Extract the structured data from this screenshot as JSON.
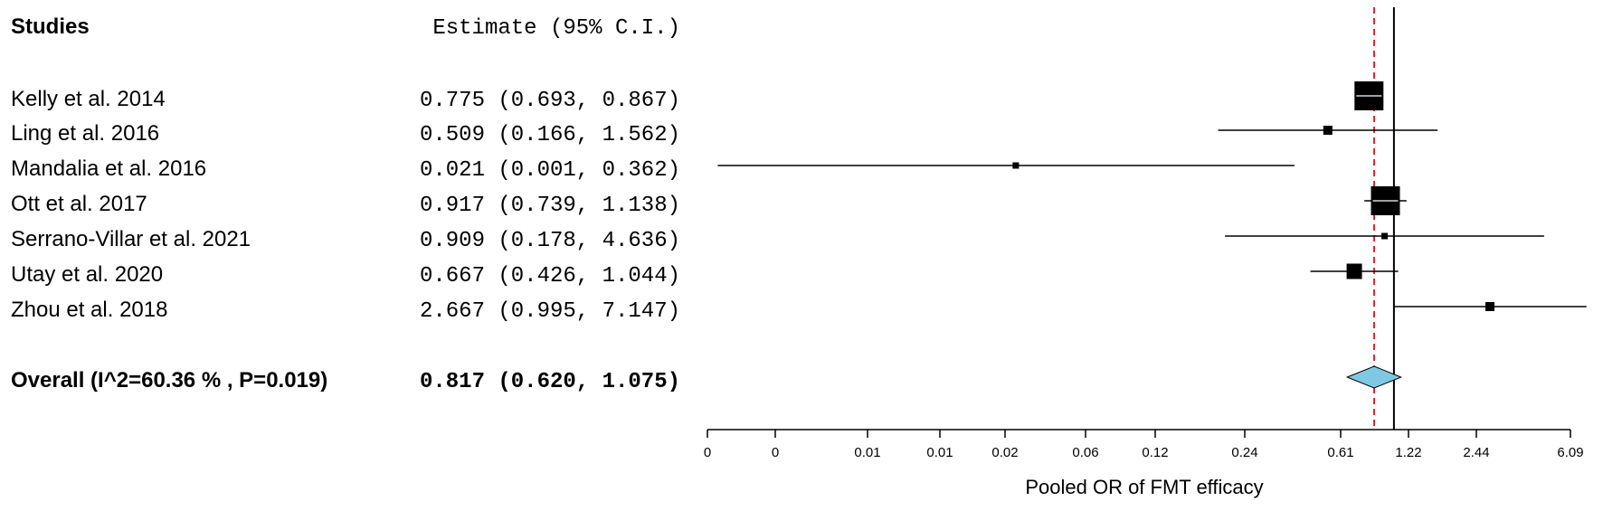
{
  "header": {
    "studies_label": "Studies",
    "estimate_label": "Estimate (95% C.I.)"
  },
  "chart_data": {
    "type": "forest",
    "xlabel": "Pooled OR of FMT efficacy",
    "x_scale": "log",
    "xlim": [
      0.0009,
      7.3
    ],
    "reference_line": 1.0,
    "pooled_line": 0.817,
    "tick_labels": [
      "0",
      "0",
      "0.01",
      "0.01",
      "0.02",
      "0.06",
      "0.12",
      "0.24",
      "0.61",
      "1.22",
      "2.44",
      "6.09"
    ],
    "studies": [
      {
        "name": "Kelly et al. 2014",
        "estimate": 0.775,
        "lower": 0.693,
        "upper": 0.867,
        "ci_text": "0.775 (0.693, 0.867)",
        "weight": "large"
      },
      {
        "name": "Ling et al. 2016",
        "estimate": 0.509,
        "lower": 0.166,
        "upper": 1.562,
        "ci_text": "0.509 (0.166, 1.562)",
        "weight": "small"
      },
      {
        "name": "Mandalia et al. 2016",
        "estimate": 0.021,
        "lower": 0.001,
        "upper": 0.362,
        "ci_text": "0.021 (0.001, 0.362)",
        "weight": "tiny"
      },
      {
        "name": "Ott et al. 2017",
        "estimate": 0.917,
        "lower": 0.739,
        "upper": 1.138,
        "ci_text": "0.917 (0.739, 1.138)",
        "weight": "large"
      },
      {
        "name": "Serrano-Villar et al. 2021",
        "estimate": 0.909,
        "lower": 0.178,
        "upper": 4.636,
        "ci_text": "0.909 (0.178, 4.636)",
        "weight": "tiny"
      },
      {
        "name": "Utay et al. 2020",
        "estimate": 0.667,
        "lower": 0.426,
        "upper": 1.044,
        "ci_text": "0.667 (0.426, 1.044)",
        "weight": "medium"
      },
      {
        "name": "Zhou et al. 2018",
        "estimate": 2.667,
        "lower": 0.995,
        "upper": 7.147,
        "ci_text": "2.667 (0.995, 7.147)",
        "weight": "small"
      }
    ],
    "overall": {
      "label": "Overall (I^2=60.36 % , P=0.019)",
      "estimate": 0.817,
      "lower": 0.62,
      "upper": 1.075,
      "ci_text": "0.817 (0.620, 1.075)"
    },
    "colors": {
      "diamond_fill": "#7ec8e3",
      "pooled_line": "#e8222e",
      "marks": "#000000"
    }
  }
}
